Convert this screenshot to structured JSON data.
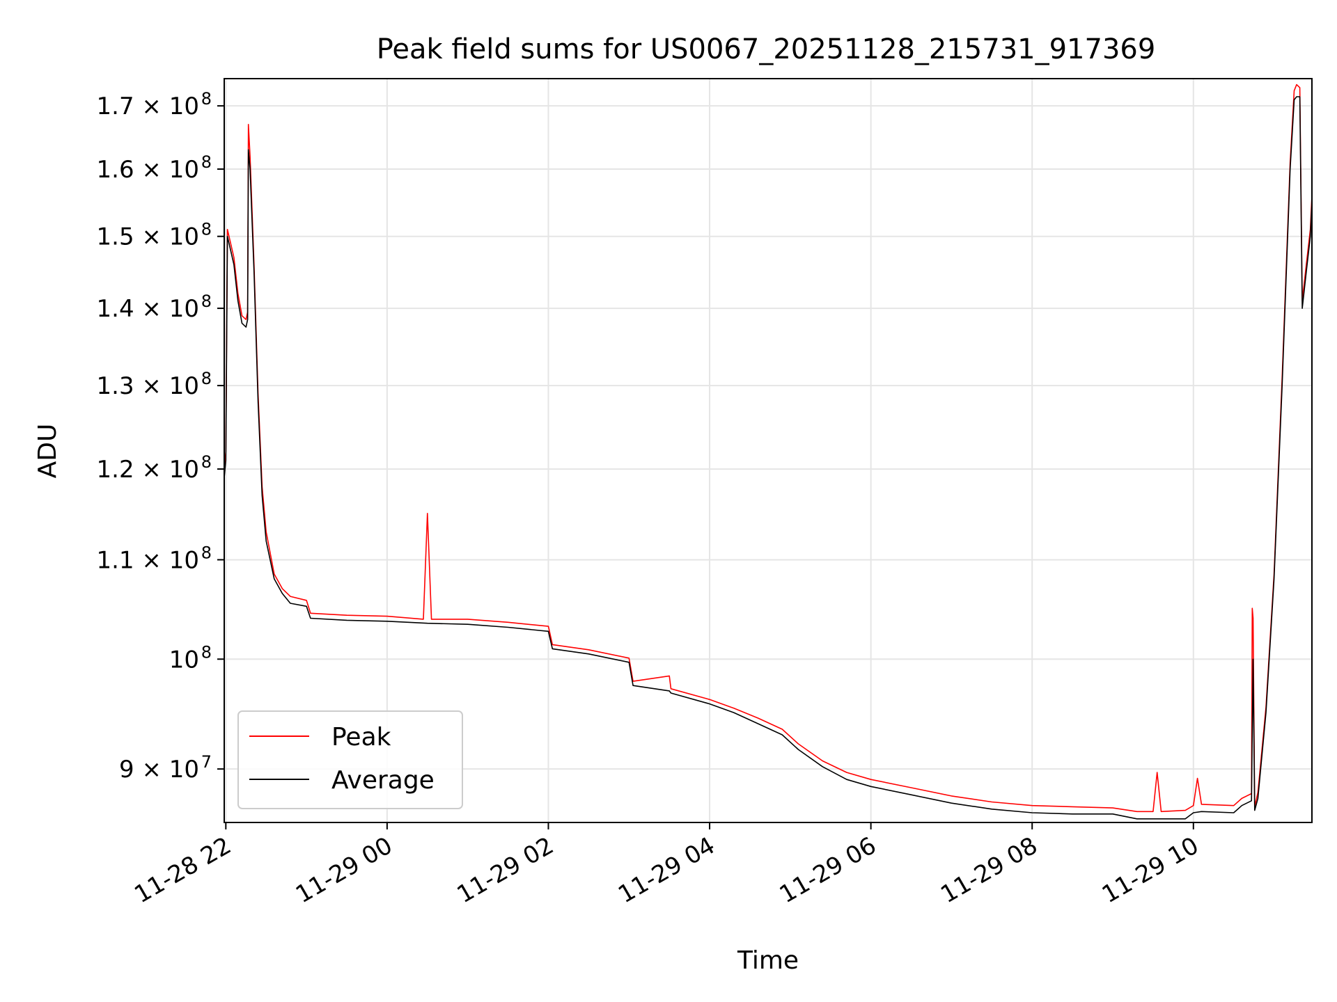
{
  "chart_data": {
    "type": "line",
    "title": "Peak field sums for US0067_20251128_215731_917369",
    "xlabel": "Time",
    "ylabel": "ADU",
    "x_unit": "hours since 11-28 00:00",
    "xlim": [
      21.98,
      35.47
    ],
    "ylim": [
      85500000,
      174500000
    ],
    "y_scale": "log",
    "grid": true,
    "legend_position": "lower-left",
    "x_ticks": [
      {
        "value": 22,
        "label": "11-28 22"
      },
      {
        "value": 24,
        "label": "11-29 00"
      },
      {
        "value": 26,
        "label": "11-29 02"
      },
      {
        "value": 28,
        "label": "11-29 04"
      },
      {
        "value": 30,
        "label": "11-29 06"
      },
      {
        "value": 32,
        "label": "11-29 08"
      },
      {
        "value": 34,
        "label": "11-29 10"
      }
    ],
    "y_ticks": [
      {
        "value": 90000000,
        "mantissa": "9",
        "exponent": "7"
      },
      {
        "value": 100000000,
        "mantissa": "",
        "exponent": "8"
      },
      {
        "value": 110000000,
        "mantissa": "1.1",
        "exponent": "8"
      },
      {
        "value": 120000000,
        "mantissa": "1.2",
        "exponent": "8"
      },
      {
        "value": 130000000,
        "mantissa": "1.3",
        "exponent": "8"
      },
      {
        "value": 140000000,
        "mantissa": "1.4",
        "exponent": "8"
      },
      {
        "value": 150000000,
        "mantissa": "1.5",
        "exponent": "8"
      },
      {
        "value": 160000000,
        "mantissa": "1.6",
        "exponent": "8"
      },
      {
        "value": 170000000,
        "mantissa": "1.7",
        "exponent": "8"
      }
    ],
    "series": [
      {
        "name": "Peak",
        "color": "#ff0000"
      },
      {
        "name": "Average",
        "color": "#000000"
      }
    ],
    "average_points": [
      [
        21.98,
        119000000
      ],
      [
        22.0,
        121000000
      ],
      [
        22.02,
        150000000
      ],
      [
        22.1,
        146000000
      ],
      [
        22.15,
        141000000
      ],
      [
        22.2,
        138000000
      ],
      [
        22.25,
        137500000
      ],
      [
        22.27,
        138500000
      ],
      [
        22.28,
        163000000
      ],
      [
        22.3,
        160000000
      ],
      [
        22.35,
        145000000
      ],
      [
        22.4,
        128000000
      ],
      [
        22.45,
        117000000
      ],
      [
        22.5,
        112000000
      ],
      [
        22.6,
        108000000
      ],
      [
        22.7,
        106500000
      ],
      [
        22.8,
        105500000
      ],
      [
        23.0,
        105200000
      ],
      [
        23.05,
        104000000
      ],
      [
        23.5,
        103800000
      ],
      [
        24.0,
        103700000
      ],
      [
        24.5,
        103500000
      ],
      [
        25.0,
        103400000
      ],
      [
        25.5,
        103100000
      ],
      [
        26.0,
        102700000
      ],
      [
        26.05,
        101000000
      ],
      [
        26.5,
        100500000
      ],
      [
        27.0,
        99700000
      ],
      [
        27.05,
        97500000
      ],
      [
        27.5,
        97000000
      ],
      [
        27.52,
        96800000
      ],
      [
        28.0,
        95800000
      ],
      [
        28.3,
        95000000
      ],
      [
        28.6,
        94000000
      ],
      [
        28.9,
        93000000
      ],
      [
        29.1,
        91700000
      ],
      [
        29.4,
        90200000
      ],
      [
        29.7,
        89100000
      ],
      [
        30.0,
        88500000
      ],
      [
        30.5,
        87800000
      ],
      [
        31.0,
        87100000
      ],
      [
        31.5,
        86600000
      ],
      [
        32.0,
        86300000
      ],
      [
        32.5,
        86200000
      ],
      [
        33.0,
        86200000
      ],
      [
        33.3,
        85800000
      ],
      [
        33.9,
        85800000
      ],
      [
        34.0,
        86300000
      ],
      [
        34.1,
        86400000
      ],
      [
        34.5,
        86300000
      ],
      [
        34.6,
        86900000
      ],
      [
        34.72,
        87300000
      ],
      [
        34.74,
        100000000
      ],
      [
        34.76,
        86500000
      ],
      [
        34.8,
        87500000
      ],
      [
        34.9,
        95000000
      ],
      [
        35.0,
        108000000
      ],
      [
        35.1,
        130000000
      ],
      [
        35.2,
        160000000
      ],
      [
        35.25,
        171000000
      ],
      [
        35.28,
        171500000
      ],
      [
        35.32,
        171500000
      ],
      [
        35.35,
        140000000
      ],
      [
        35.4,
        145000000
      ],
      [
        35.45,
        150000000
      ],
      [
        35.47,
        155000000
      ]
    ],
    "peak_points": [
      [
        21.98,
        120000000
      ],
      [
        22.0,
        122000000
      ],
      [
        22.02,
        151000000
      ],
      [
        22.1,
        147000000
      ],
      [
        22.15,
        142000000
      ],
      [
        22.2,
        139000000
      ],
      [
        22.25,
        138500000
      ],
      [
        22.27,
        139500000
      ],
      [
        22.28,
        167000000
      ],
      [
        22.3,
        162000000
      ],
      [
        22.35,
        146000000
      ],
      [
        22.4,
        129000000
      ],
      [
        22.45,
        118000000
      ],
      [
        22.5,
        113000000
      ],
      [
        22.6,
        108500000
      ],
      [
        22.7,
        107000000
      ],
      [
        22.8,
        106200000
      ],
      [
        23.0,
        105800000
      ],
      [
        23.05,
        104500000
      ],
      [
        23.5,
        104300000
      ],
      [
        24.0,
        104200000
      ],
      [
        24.45,
        103900000
      ],
      [
        24.5,
        115000000
      ],
      [
        24.55,
        103900000
      ],
      [
        25.0,
        103900000
      ],
      [
        25.5,
        103600000
      ],
      [
        26.0,
        103200000
      ],
      [
        26.05,
        101400000
      ],
      [
        26.5,
        100900000
      ],
      [
        27.0,
        100100000
      ],
      [
        27.05,
        97900000
      ],
      [
        27.5,
        98400000
      ],
      [
        27.52,
        97200000
      ],
      [
        28.0,
        96200000
      ],
      [
        28.3,
        95400000
      ],
      [
        28.6,
        94500000
      ],
      [
        28.9,
        93500000
      ],
      [
        29.1,
        92200000
      ],
      [
        29.4,
        90700000
      ],
      [
        29.7,
        89700000
      ],
      [
        30.0,
        89100000
      ],
      [
        30.5,
        88400000
      ],
      [
        31.0,
        87700000
      ],
      [
        31.5,
        87200000
      ],
      [
        32.0,
        86900000
      ],
      [
        32.5,
        86800000
      ],
      [
        33.0,
        86700000
      ],
      [
        33.3,
        86400000
      ],
      [
        33.5,
        86400000
      ],
      [
        33.55,
        89700000
      ],
      [
        33.6,
        86400000
      ],
      [
        33.9,
        86500000
      ],
      [
        34.0,
        86900000
      ],
      [
        34.05,
        89200000
      ],
      [
        34.1,
        87000000
      ],
      [
        34.5,
        86900000
      ],
      [
        34.6,
        87500000
      ],
      [
        34.72,
        87900000
      ],
      [
        34.73,
        105000000
      ],
      [
        34.74,
        104000000
      ],
      [
        34.76,
        86800000
      ],
      [
        34.8,
        88000000
      ],
      [
        34.9,
        95500000
      ],
      [
        35.0,
        108500000
      ],
      [
        35.1,
        131000000
      ],
      [
        35.2,
        161000000
      ],
      [
        35.25,
        172500000
      ],
      [
        35.28,
        173500000
      ],
      [
        35.32,
        173000000
      ],
      [
        35.35,
        141000000
      ],
      [
        35.4,
        146000000
      ],
      [
        35.45,
        151000000
      ],
      [
        35.47,
        156000000
      ]
    ]
  }
}
